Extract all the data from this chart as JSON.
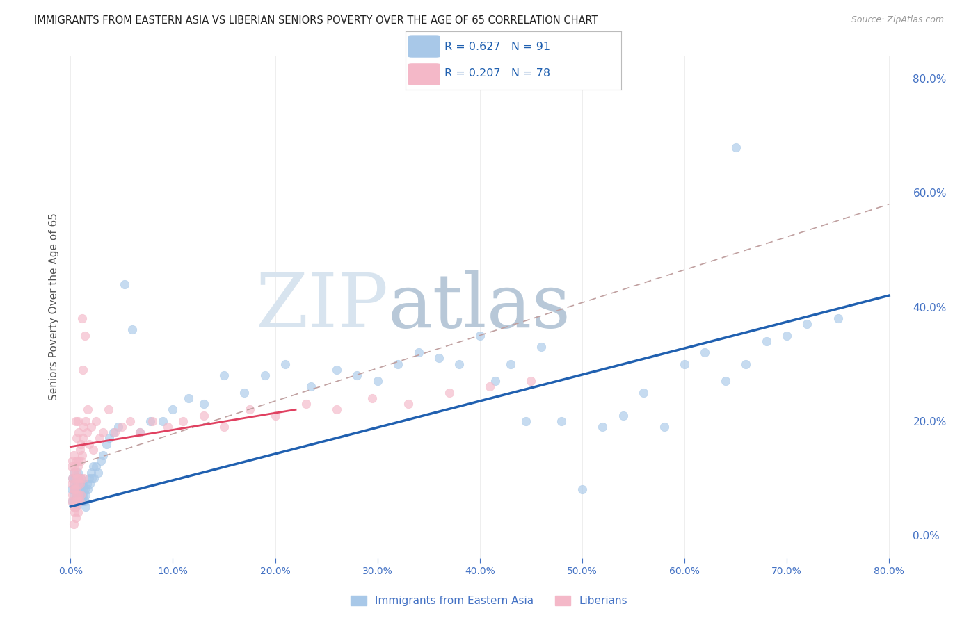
{
  "title": "IMMIGRANTS FROM EASTERN ASIA VS LIBERIAN SENIORS POVERTY OVER THE AGE OF 65 CORRELATION CHART",
  "source": "Source: ZipAtlas.com",
  "ylabel": "Seniors Poverty Over the Age of 65",
  "legend_label1": "Immigrants from Eastern Asia",
  "legend_label2": "Liberians",
  "r1": 0.627,
  "n1": 91,
  "r2": 0.207,
  "n2": 78,
  "xlim": [
    -0.002,
    0.82
  ],
  "ylim": [
    -0.04,
    0.84
  ],
  "xticks": [
    0.0,
    0.1,
    0.2,
    0.3,
    0.4,
    0.5,
    0.6,
    0.7,
    0.8
  ],
  "yticks_right": [
    0.0,
    0.2,
    0.4,
    0.6,
    0.8
  ],
  "color_blue": "#a8c8e8",
  "color_pink": "#f4b8c8",
  "color_blue_line": "#2060b0",
  "color_pink_line": "#e04060",
  "color_gray_dash": "#c0a0a0",
  "background_color": "#ffffff",
  "watermark_zip": "ZIP",
  "watermark_atlas": "atlas",
  "watermark_color_zip": "#d8e4ef",
  "watermark_color_atlas": "#b8c8d8",
  "axis_label_color": "#4472c4",
  "ylabel_color": "#555555",
  "grid_color": "#dddddd",
  "title_color": "#222222",
  "source_color": "#999999",
  "blue_trend": [
    0.0,
    0.05,
    0.8,
    0.42
  ],
  "pink_trend_solid": [
    0.0,
    0.155,
    0.22,
    0.22
  ],
  "gray_dash": [
    0.0,
    0.12,
    0.8,
    0.58
  ],
  "blue_scatter_x": [
    0.001,
    0.002,
    0.002,
    0.003,
    0.003,
    0.003,
    0.004,
    0.004,
    0.004,
    0.005,
    0.005,
    0.005,
    0.006,
    0.006,
    0.007,
    0.007,
    0.007,
    0.008,
    0.008,
    0.008,
    0.009,
    0.009,
    0.01,
    0.01,
    0.01,
    0.011,
    0.011,
    0.012,
    0.012,
    0.013,
    0.013,
    0.014,
    0.014,
    0.015,
    0.015,
    0.016,
    0.017,
    0.018,
    0.019,
    0.02,
    0.021,
    0.022,
    0.023,
    0.025,
    0.027,
    0.03,
    0.032,
    0.035,
    0.038,
    0.042,
    0.047,
    0.053,
    0.06,
    0.068,
    0.078,
    0.09,
    0.1,
    0.115,
    0.13,
    0.15,
    0.17,
    0.19,
    0.21,
    0.235,
    0.26,
    0.28,
    0.3,
    0.32,
    0.34,
    0.36,
    0.38,
    0.4,
    0.415,
    0.43,
    0.445,
    0.46,
    0.48,
    0.5,
    0.52,
    0.54,
    0.56,
    0.58,
    0.6,
    0.62,
    0.64,
    0.66,
    0.68,
    0.7,
    0.72,
    0.75,
    0.65
  ],
  "blue_scatter_y": [
    0.08,
    0.06,
    0.1,
    0.07,
    0.09,
    0.11,
    0.06,
    0.08,
    0.1,
    0.05,
    0.07,
    0.09,
    0.08,
    0.1,
    0.07,
    0.09,
    0.11,
    0.06,
    0.08,
    0.1,
    0.07,
    0.09,
    0.06,
    0.08,
    0.1,
    0.07,
    0.09,
    0.06,
    0.08,
    0.07,
    0.09,
    0.06,
    0.08,
    0.05,
    0.07,
    0.09,
    0.08,
    0.1,
    0.09,
    0.11,
    0.1,
    0.12,
    0.1,
    0.12,
    0.11,
    0.13,
    0.14,
    0.16,
    0.17,
    0.18,
    0.19,
    0.44,
    0.36,
    0.18,
    0.2,
    0.2,
    0.22,
    0.24,
    0.23,
    0.28,
    0.25,
    0.28,
    0.3,
    0.26,
    0.29,
    0.28,
    0.27,
    0.3,
    0.32,
    0.31,
    0.3,
    0.35,
    0.27,
    0.3,
    0.2,
    0.33,
    0.2,
    0.08,
    0.19,
    0.21,
    0.25,
    0.19,
    0.3,
    0.32,
    0.27,
    0.3,
    0.34,
    0.35,
    0.37,
    0.38,
    0.68
  ],
  "pink_scatter_x": [
    0.001,
    0.001,
    0.001,
    0.002,
    0.002,
    0.002,
    0.003,
    0.003,
    0.003,
    0.003,
    0.004,
    0.004,
    0.004,
    0.005,
    0.005,
    0.005,
    0.006,
    0.006,
    0.006,
    0.007,
    0.007,
    0.007,
    0.008,
    0.008,
    0.008,
    0.009,
    0.009,
    0.01,
    0.01,
    0.01,
    0.011,
    0.012,
    0.013,
    0.014,
    0.015,
    0.016,
    0.017,
    0.018,
    0.02,
    0.022,
    0.025,
    0.028,
    0.032,
    0.037,
    0.043,
    0.05,
    0.058,
    0.068,
    0.08,
    0.095,
    0.11,
    0.13,
    0.15,
    0.175,
    0.2,
    0.23,
    0.26,
    0.295,
    0.33,
    0.37,
    0.41,
    0.45,
    0.005,
    0.006,
    0.007,
    0.008,
    0.009,
    0.01,
    0.011,
    0.012,
    0.013,
    0.003,
    0.004,
    0.005,
    0.006,
    0.007,
    0.004,
    0.003
  ],
  "pink_scatter_y": [
    0.06,
    0.09,
    0.12,
    0.07,
    0.1,
    0.13,
    0.05,
    0.08,
    0.11,
    0.14,
    0.06,
    0.09,
    0.12,
    0.05,
    0.08,
    0.11,
    0.07,
    0.1,
    0.13,
    0.06,
    0.09,
    0.12,
    0.07,
    0.1,
    0.13,
    0.06,
    0.09,
    0.07,
    0.1,
    0.13,
    0.38,
    0.29,
    0.1,
    0.35,
    0.2,
    0.18,
    0.22,
    0.16,
    0.19,
    0.15,
    0.2,
    0.17,
    0.18,
    0.22,
    0.18,
    0.19,
    0.2,
    0.18,
    0.2,
    0.19,
    0.2,
    0.21,
    0.19,
    0.22,
    0.21,
    0.23,
    0.22,
    0.24,
    0.23,
    0.25,
    0.26,
    0.27,
    0.2,
    0.17,
    0.2,
    0.18,
    0.15,
    0.16,
    0.14,
    0.17,
    0.19,
    0.05,
    0.04,
    0.03,
    0.06,
    0.04,
    0.08,
    0.02
  ]
}
